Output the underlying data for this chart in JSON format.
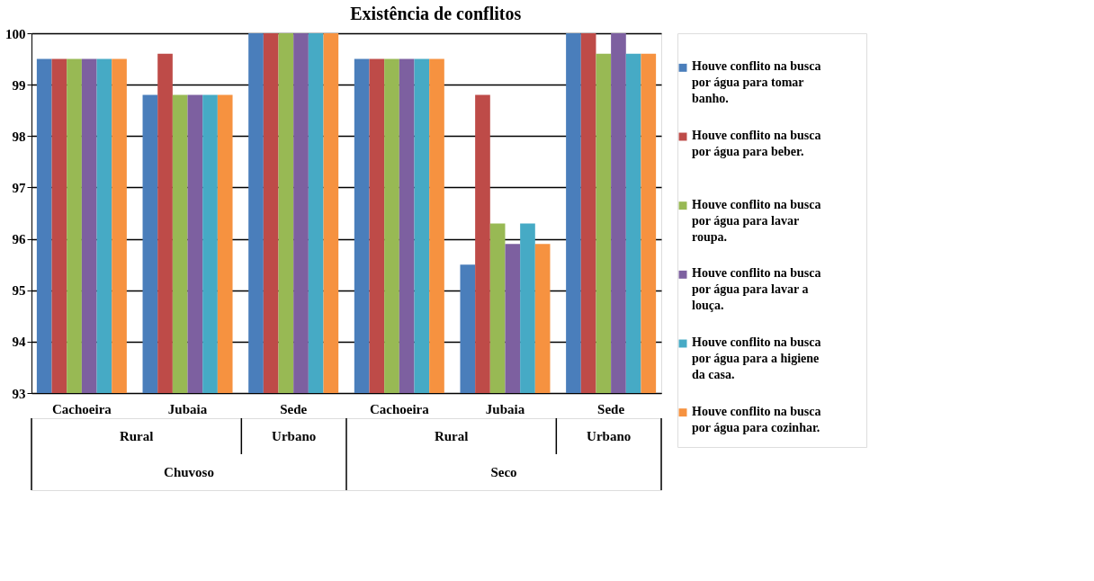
{
  "chart_data": {
    "type": "bar",
    "title": "Existência de conflitos",
    "categories": [
      "Cachoeira",
      "Jubaia",
      "Sede",
      "Cachoeira",
      "Jubaia",
      "Sede"
    ],
    "annotations": [
      "Rural",
      "Urbano",
      "Rural",
      "Urbano",
      "Chuvoso",
      "Seco"
    ],
    "series": [
      {
        "name": "Houve conflito na busca por água para tomar banho.",
        "color": "#4a7ebb",
        "values": [
          99.5,
          98.8,
          100,
          99.5,
          95.5,
          100
        ]
      },
      {
        "name": "Houve conflito na busca por água para beber.",
        "color": "#be4b48",
        "values": [
          99.5,
          99.6,
          100,
          99.5,
          98.8,
          100
        ]
      },
      {
        "name": "Houve conflito na busca por água para lavar roupa.",
        "color": "#98b954",
        "values": [
          99.5,
          98.8,
          100,
          99.5,
          96.3,
          99.6
        ]
      },
      {
        "name": "Houve conflito na busca por água para lavar a louça.",
        "color": "#7d60a0",
        "values": [
          99.5,
          98.8,
          100,
          99.5,
          95.9,
          100
        ]
      },
      {
        "name": "Houve conflito na busca por água para a higiene da casa.",
        "color": "#46aac5",
        "values": [
          99.5,
          98.8,
          100,
          99.5,
          96.3,
          99.6
        ]
      },
      {
        "name": "Houve conflito na busca por água para cozinhar.",
        "color": "#f69240",
        "values": [
          99.5,
          98.8,
          100,
          99.5,
          95.9,
          99.6
        ]
      }
    ],
    "ylim": [
      93,
      100
    ],
    "yticks": [
      93,
      94,
      95,
      96,
      97,
      98,
      99,
      100
    ],
    "grid": "y",
    "legend": "right"
  }
}
